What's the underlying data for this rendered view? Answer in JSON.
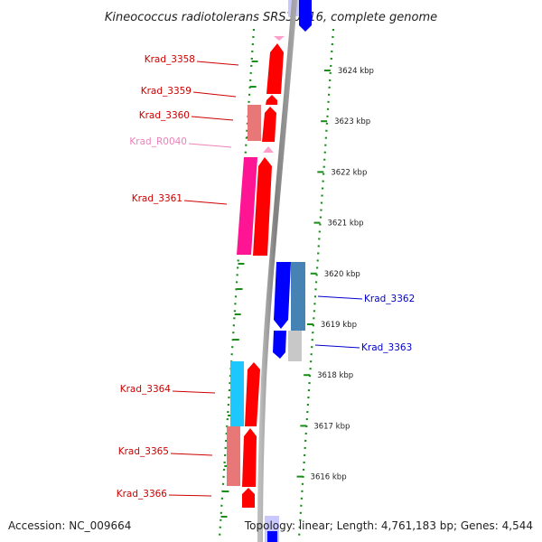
{
  "title": "Kineococcus radiotolerans SRS30216, complete genome",
  "footer": {
    "accession": "Accession: NC_009664",
    "summary": "Topology: linear; Length: 4,761,183 bp; Genes: 4,544"
  },
  "scale_unit": "kbp",
  "scale_ticks": [
    {
      "kbp": 3624,
      "label": "3624 kbp"
    },
    {
      "kbp": 3623,
      "label": "3623 kbp"
    },
    {
      "kbp": 3622,
      "label": "3622 kbp"
    },
    {
      "kbp": 3621,
      "label": "3621 kbp"
    },
    {
      "kbp": 3620,
      "label": "3620 kbp"
    },
    {
      "kbp": 3619,
      "label": "3619 kbp"
    },
    {
      "kbp": 3618,
      "label": "3618 kbp"
    },
    {
      "kbp": 3617,
      "label": "3617 kbp"
    },
    {
      "kbp": 3616,
      "label": "3616 kbp"
    }
  ],
  "genes": [
    {
      "name": "Krad_3358",
      "strand": "left",
      "color": "#cc0000"
    },
    {
      "name": "Krad_3359",
      "strand": "left",
      "color": "#cc0000"
    },
    {
      "name": "Krad_3360",
      "strand": "left",
      "color": "#cc0000"
    },
    {
      "name": "Krad_R0040",
      "strand": "left",
      "color": "#f080b8"
    },
    {
      "name": "Krad_3361",
      "strand": "left",
      "color": "#cc0000"
    },
    {
      "name": "Krad_3362",
      "strand": "right",
      "color": "#0000cc"
    },
    {
      "name": "Krad_3363",
      "strand": "right",
      "color": "#0000cc"
    },
    {
      "name": "Krad_3364",
      "strand": "left",
      "color": "#cc0000"
    },
    {
      "name": "Krad_3365",
      "strand": "left",
      "color": "#cc0000"
    },
    {
      "name": "Krad_3366",
      "strand": "left",
      "color": "#cc0000"
    }
  ],
  "colors": {
    "forward": "#ff0000",
    "forward_light": "#e87878",
    "reverse": "#0000ff",
    "reverse_muted": "#4682b4",
    "magenta": "#ff1493",
    "cyan": "#1ec8ff",
    "pink": "#ff9ec8",
    "grey_gene": "#c8c8c8",
    "backbone": "#8c8c8c",
    "dots": "#1a8c1a"
  }
}
